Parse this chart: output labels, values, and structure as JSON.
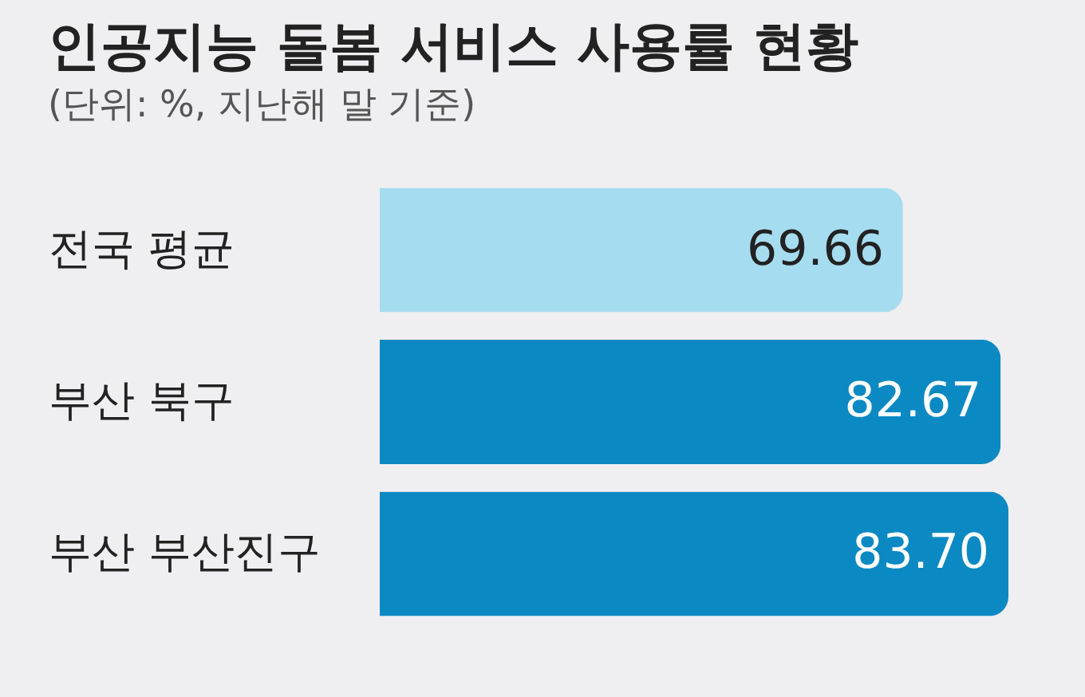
{
  "chart_data": {
    "type": "bar",
    "orientation": "horizontal",
    "title": "인공지능 돌봄 서비스 사용률 현황",
    "subtitle": "(단위: %, 지난해 말 기준)",
    "categories": [
      "전국 평균",
      "부산 북구",
      "부산 부산진구"
    ],
    "values": [
      69.66,
      82.67,
      83.7
    ],
    "colors": [
      "#a6dcef",
      "#0b89c3",
      "#0b89c3"
    ],
    "value_labels": [
      "69.66",
      "82.67",
      "83.70"
    ]
  }
}
